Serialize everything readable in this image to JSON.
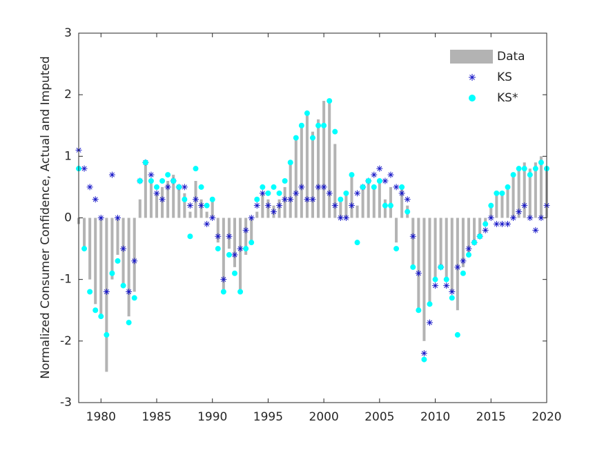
{
  "chart_data": {
    "type": "bar",
    "ylabel": "Normalized Consumer Confidence, Actual and Imputed",
    "x": [
      1978.0,
      1978.5,
      1979.0,
      1979.5,
      1980.0,
      1980.5,
      1981.0,
      1981.5,
      1982.0,
      1982.5,
      1983.0,
      1983.5,
      1984.0,
      1984.5,
      1985.0,
      1985.5,
      1986.0,
      1986.5,
      1987.0,
      1987.5,
      1988.0,
      1988.5,
      1989.0,
      1989.5,
      1990.0,
      1990.5,
      1991.0,
      1991.5,
      1992.0,
      1992.5,
      1993.0,
      1993.5,
      1994.0,
      1994.5,
      1995.0,
      1995.5,
      1996.0,
      1996.5,
      1997.0,
      1997.5,
      1998.0,
      1998.5,
      1999.0,
      1999.5,
      2000.0,
      2000.5,
      2001.0,
      2001.5,
      2002.0,
      2002.5,
      2003.0,
      2003.5,
      2004.0,
      2004.5,
      2005.0,
      2005.5,
      2006.0,
      2006.5,
      2007.0,
      2007.5,
      2008.0,
      2008.5,
      2009.0,
      2009.5,
      2010.0,
      2010.5,
      2011.0,
      2011.5,
      2012.0,
      2012.5,
      2013.0,
      2013.5,
      2014.0,
      2014.5,
      2015.0,
      2015.5,
      2016.0,
      2016.5,
      2017.0,
      2017.5,
      2018.0,
      2018.5,
      2019.0,
      2019.5,
      2020.0
    ],
    "series": [
      {
        "name": "Data",
        "type": "bar",
        "color": "#b3b3b3",
        "values": [
          -0.1,
          -0.5,
          -1.0,
          -1.4,
          -1.6,
          -2.5,
          -1.0,
          -0.6,
          -1.1,
          -1.6,
          -1.2,
          0.3,
          0.9,
          0.6,
          0.4,
          0.5,
          0.6,
          0.7,
          0.5,
          0.4,
          0.1,
          0.6,
          0.3,
          0.1,
          0.3,
          -0.4,
          -1.2,
          -0.5,
          -0.8,
          -1.2,
          -0.6,
          -0.4,
          0.1,
          0.4,
          0.3,
          0.2,
          0.3,
          0.5,
          0.9,
          1.3,
          1.5,
          1.7,
          1.4,
          1.6,
          1.9,
          1.9,
          1.2,
          0.3,
          0.4,
          0.7,
          0.2,
          0.5,
          0.6,
          0.5,
          0.6,
          0.3,
          0.5,
          -0.4,
          0.5,
          0.2,
          -0.8,
          -1.5,
          -2.0,
          -1.4,
          -1.0,
          -0.8,
          -1.0,
          -1.2,
          -1.5,
          -0.8,
          -0.6,
          -0.4,
          -0.3,
          -0.1,
          0.2,
          0.4,
          0.4,
          0.5,
          0.7,
          0.8,
          0.9,
          0.8,
          0.9,
          1.0,
          0.8
        ]
      },
      {
        "name": "KS",
        "type": "scatter",
        "marker": "asterisk",
        "color": "#1a1ac8",
        "values": [
          1.1,
          0.8,
          0.5,
          0.3,
          0.0,
          -1.2,
          0.7,
          0.0,
          -0.5,
          -1.2,
          -0.7,
          0.6,
          0.9,
          0.7,
          0.4,
          0.3,
          0.5,
          0.6,
          0.5,
          0.5,
          0.2,
          0.3,
          0.2,
          -0.1,
          0.0,
          -0.3,
          -1.0,
          -0.3,
          -0.6,
          -0.5,
          -0.2,
          0.0,
          0.2,
          0.4,
          0.2,
          0.1,
          0.2,
          0.3,
          0.3,
          0.4,
          0.5,
          0.3,
          0.3,
          0.5,
          0.5,
          0.4,
          0.2,
          0.0,
          0.0,
          0.2,
          0.4,
          0.5,
          0.6,
          0.7,
          0.8,
          0.6,
          0.7,
          0.5,
          0.4,
          0.3,
          -0.3,
          -0.9,
          -2.2,
          -1.7,
          -1.1,
          -0.8,
          -1.1,
          -1.2,
          -0.8,
          -0.7,
          -0.5,
          -0.4,
          -0.3,
          -0.2,
          0.0,
          -0.1,
          -0.1,
          -0.1,
          0.0,
          0.1,
          0.2,
          0.0,
          -0.2,
          0.0,
          0.2
        ]
      },
      {
        "name": "KS*",
        "type": "scatter",
        "marker": "circle",
        "color": "#00ffff",
        "values": [
          0.8,
          -0.5,
          -1.2,
          -1.5,
          -1.6,
          -1.9,
          -0.9,
          -0.7,
          -1.1,
          -1.7,
          -1.3,
          0.6,
          0.9,
          0.6,
          0.5,
          0.6,
          0.7,
          0.6,
          0.5,
          0.3,
          -0.3,
          0.8,
          0.5,
          0.2,
          0.3,
          -0.5,
          -1.2,
          -0.6,
          -0.9,
          -1.2,
          -0.5,
          -0.4,
          0.3,
          0.5,
          0.4,
          0.5,
          0.4,
          0.6,
          0.9,
          1.3,
          1.5,
          1.7,
          1.3,
          1.5,
          1.5,
          1.9,
          1.4,
          0.3,
          0.4,
          0.7,
          -0.4,
          0.5,
          0.6,
          0.5,
          0.6,
          0.2,
          0.2,
          -0.5,
          0.5,
          0.1,
          -0.8,
          -1.5,
          -2.3,
          -1.4,
          -1.0,
          -0.8,
          -1.0,
          -1.3,
          -1.9,
          -0.9,
          -0.6,
          -0.4,
          -0.3,
          -0.1,
          0.2,
          0.4,
          0.4,
          0.5,
          0.7,
          0.8,
          0.8,
          0.7,
          0.8,
          0.9,
          0.8
        ]
      }
    ],
    "xlim": [
      1978,
      2020
    ],
    "xticks": [
      1980,
      1985,
      1990,
      1995,
      2000,
      2005,
      2010,
      2015,
      2020
    ],
    "ylim": [
      -3,
      3
    ],
    "yticks": [
      -3,
      -2,
      -1,
      0,
      1,
      2,
      3
    ],
    "grid": false,
    "legend": "upper right"
  }
}
